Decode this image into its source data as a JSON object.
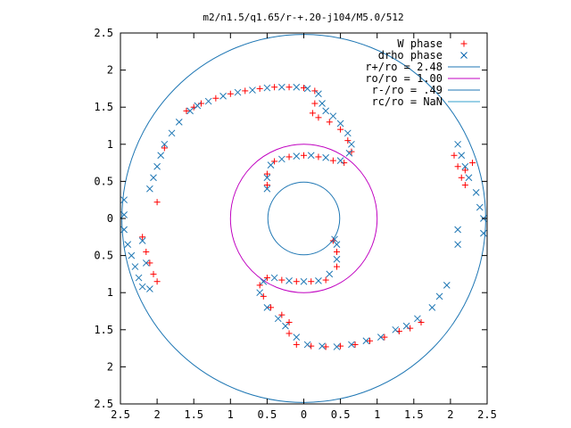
{
  "chart_data": {
    "type": "scatter",
    "title": "m2/n1.5/q1.65/r-+.20-j104/M5.0/512",
    "xlabel": "",
    "ylabel": "",
    "xlim": [
      -2.5,
      2.5
    ],
    "ylim": [
      -2.5,
      2.5
    ],
    "x_ticks": [
      "2.5",
      "2",
      "1.5",
      "1",
      "0.5",
      "0",
      "0.5",
      "1",
      "1.5",
      "2",
      "2.5"
    ],
    "y_ticks": [
      "2.5",
      "2",
      "1.5",
      "1",
      "0.5",
      "0",
      "0.5",
      "1",
      "1.5",
      "2",
      "2.5"
    ],
    "legend_position": "top-right",
    "grid": false,
    "legend": [
      {
        "label": "W phase",
        "marker": "+",
        "color": "#ff0000"
      },
      {
        "label": "drho phase",
        "marker": "x",
        "color": "#0060ad"
      },
      {
        "label": "r+/ro = 2.48",
        "line": true,
        "color": "#1f77b4"
      },
      {
        "label": "ro/ro = 1.00",
        "line": true,
        "color": "#c000c0"
      },
      {
        "label": "r-/ro = .49",
        "line": true,
        "color": "#1f77b4"
      },
      {
        "label": "rc/ro = NaN",
        "line": true,
        "color": "#33a0cc"
      }
    ],
    "circles": [
      {
        "name": "r+/ro = 2.48",
        "r": 2.48,
        "color": "#1f77b4"
      },
      {
        "name": "ro/ro = 1.00",
        "r": 1.0,
        "color": "#c000c0"
      },
      {
        "name": "r-/ro = .49",
        "r": 0.49,
        "color": "#1f77b4"
      }
    ],
    "series": [
      {
        "name": "W phase",
        "marker": "+",
        "color": "#ff0000",
        "points": [
          [
            -1.6,
            1.45
          ],
          [
            -1.5,
            1.5
          ],
          [
            -1.4,
            1.55
          ],
          [
            -1.2,
            1.62
          ],
          [
            -1.0,
            1.68
          ],
          [
            -0.8,
            1.72
          ],
          [
            -0.6,
            1.75
          ],
          [
            -0.4,
            1.77
          ],
          [
            -0.2,
            1.77
          ],
          [
            0.0,
            1.76
          ],
          [
            0.15,
            1.72
          ],
          [
            0.15,
            1.55
          ],
          [
            0.12,
            1.42
          ],
          [
            0.2,
            1.36
          ],
          [
            0.35,
            1.3
          ],
          [
            0.5,
            1.2
          ],
          [
            0.6,
            1.05
          ],
          [
            0.65,
            0.9
          ],
          [
            0.55,
            0.75
          ],
          [
            0.4,
            0.78
          ],
          [
            0.2,
            0.83
          ],
          [
            0.0,
            0.85
          ],
          [
            -0.2,
            0.83
          ],
          [
            -0.4,
            0.77
          ],
          [
            -0.5,
            0.6
          ],
          [
            -0.5,
            0.45
          ],
          [
            -2.0,
            0.22
          ],
          [
            -1.9,
            0.95
          ],
          [
            -2.2,
            -0.25
          ],
          [
            -2.15,
            -0.45
          ],
          [
            -2.1,
            -0.6
          ],
          [
            -2.05,
            -0.75
          ],
          [
            -2.0,
            -0.85
          ],
          [
            1.6,
            -1.4
          ],
          [
            1.45,
            -1.48
          ],
          [
            1.3,
            -1.52
          ],
          [
            1.1,
            -1.6
          ],
          [
            0.9,
            -1.65
          ],
          [
            0.7,
            -1.7
          ],
          [
            0.5,
            -1.72
          ],
          [
            0.3,
            -1.73
          ],
          [
            0.1,
            -1.72
          ],
          [
            -0.1,
            -1.7
          ],
          [
            -0.2,
            -1.55
          ],
          [
            -0.2,
            -1.4
          ],
          [
            -0.3,
            -1.3
          ],
          [
            -0.45,
            -1.2
          ],
          [
            -0.55,
            -1.05
          ],
          [
            -0.6,
            -0.9
          ],
          [
            -0.5,
            -0.8
          ],
          [
            -0.3,
            -0.83
          ],
          [
            -0.1,
            -0.85
          ],
          [
            0.1,
            -0.85
          ],
          [
            0.3,
            -0.83
          ],
          [
            0.45,
            -0.65
          ],
          [
            0.45,
            -0.45
          ],
          [
            0.4,
            -0.3
          ],
          [
            2.05,
            0.85
          ],
          [
            2.1,
            0.7
          ],
          [
            2.15,
            0.55
          ],
          [
            2.2,
            0.45
          ],
          [
            2.2,
            0.65
          ],
          [
            2.3,
            0.75
          ]
        ]
      },
      {
        "name": "drho phase",
        "marker": "x",
        "color": "#1f77b4",
        "points": [
          [
            -1.55,
            1.45
          ],
          [
            -1.45,
            1.52
          ],
          [
            -1.3,
            1.58
          ],
          [
            -1.1,
            1.65
          ],
          [
            -0.9,
            1.7
          ],
          [
            -0.7,
            1.73
          ],
          [
            -0.5,
            1.76
          ],
          [
            -0.3,
            1.77
          ],
          [
            -0.1,
            1.77
          ],
          [
            0.05,
            1.75
          ],
          [
            0.2,
            1.68
          ],
          [
            0.25,
            1.55
          ],
          [
            0.3,
            1.45
          ],
          [
            0.4,
            1.38
          ],
          [
            0.5,
            1.28
          ],
          [
            0.6,
            1.15
          ],
          [
            0.65,
            1.0
          ],
          [
            0.62,
            0.88
          ],
          [
            0.5,
            0.78
          ],
          [
            0.3,
            0.82
          ],
          [
            0.1,
            0.85
          ],
          [
            -0.1,
            0.84
          ],
          [
            -0.3,
            0.8
          ],
          [
            -0.45,
            0.72
          ],
          [
            -0.5,
            0.55
          ],
          [
            -0.5,
            0.4
          ],
          [
            -1.7,
            1.3
          ],
          [
            -1.8,
            1.15
          ],
          [
            -1.9,
            1.0
          ],
          [
            -1.95,
            0.85
          ],
          [
            -2.0,
            0.7
          ],
          [
            -2.05,
            0.55
          ],
          [
            -2.1,
            0.4
          ],
          [
            -2.45,
            0.25
          ],
          [
            -2.45,
            0.05
          ],
          [
            -2.45,
            -0.15
          ],
          [
            -2.4,
            -0.35
          ],
          [
            -2.35,
            -0.5
          ],
          [
            -2.3,
            -0.65
          ],
          [
            -2.25,
            -0.8
          ],
          [
            -2.2,
            -0.92
          ],
          [
            -2.1,
            -0.95
          ],
          [
            -2.2,
            -0.3
          ],
          [
            -2.15,
            -0.6
          ],
          [
            1.55,
            -1.35
          ],
          [
            1.4,
            -1.45
          ],
          [
            1.25,
            -1.5
          ],
          [
            1.05,
            -1.6
          ],
          [
            0.85,
            -1.65
          ],
          [
            0.65,
            -1.7
          ],
          [
            0.45,
            -1.73
          ],
          [
            0.25,
            -1.72
          ],
          [
            0.05,
            -1.7
          ],
          [
            -0.1,
            -1.6
          ],
          [
            -0.25,
            -1.45
          ],
          [
            -0.35,
            -1.35
          ],
          [
            -0.5,
            -1.2
          ],
          [
            -0.6,
            -1.0
          ],
          [
            -0.55,
            -0.85
          ],
          [
            -0.4,
            -0.8
          ],
          [
            -0.2,
            -0.84
          ],
          [
            0.0,
            -0.85
          ],
          [
            0.2,
            -0.84
          ],
          [
            0.35,
            -0.75
          ],
          [
            0.45,
            -0.55
          ],
          [
            0.45,
            -0.35
          ],
          [
            0.42,
            -0.28
          ],
          [
            1.75,
            -1.2
          ],
          [
            1.85,
            -1.05
          ],
          [
            1.95,
            -0.9
          ],
          [
            2.1,
            -0.35
          ],
          [
            2.1,
            -0.15
          ],
          [
            2.1,
            1.0
          ],
          [
            2.15,
            0.85
          ],
          [
            2.2,
            0.7
          ],
          [
            2.25,
            0.55
          ],
          [
            2.35,
            0.35
          ],
          [
            2.4,
            0.15
          ],
          [
            2.45,
            0.0
          ],
          [
            2.45,
            -0.2
          ]
        ]
      }
    ]
  }
}
